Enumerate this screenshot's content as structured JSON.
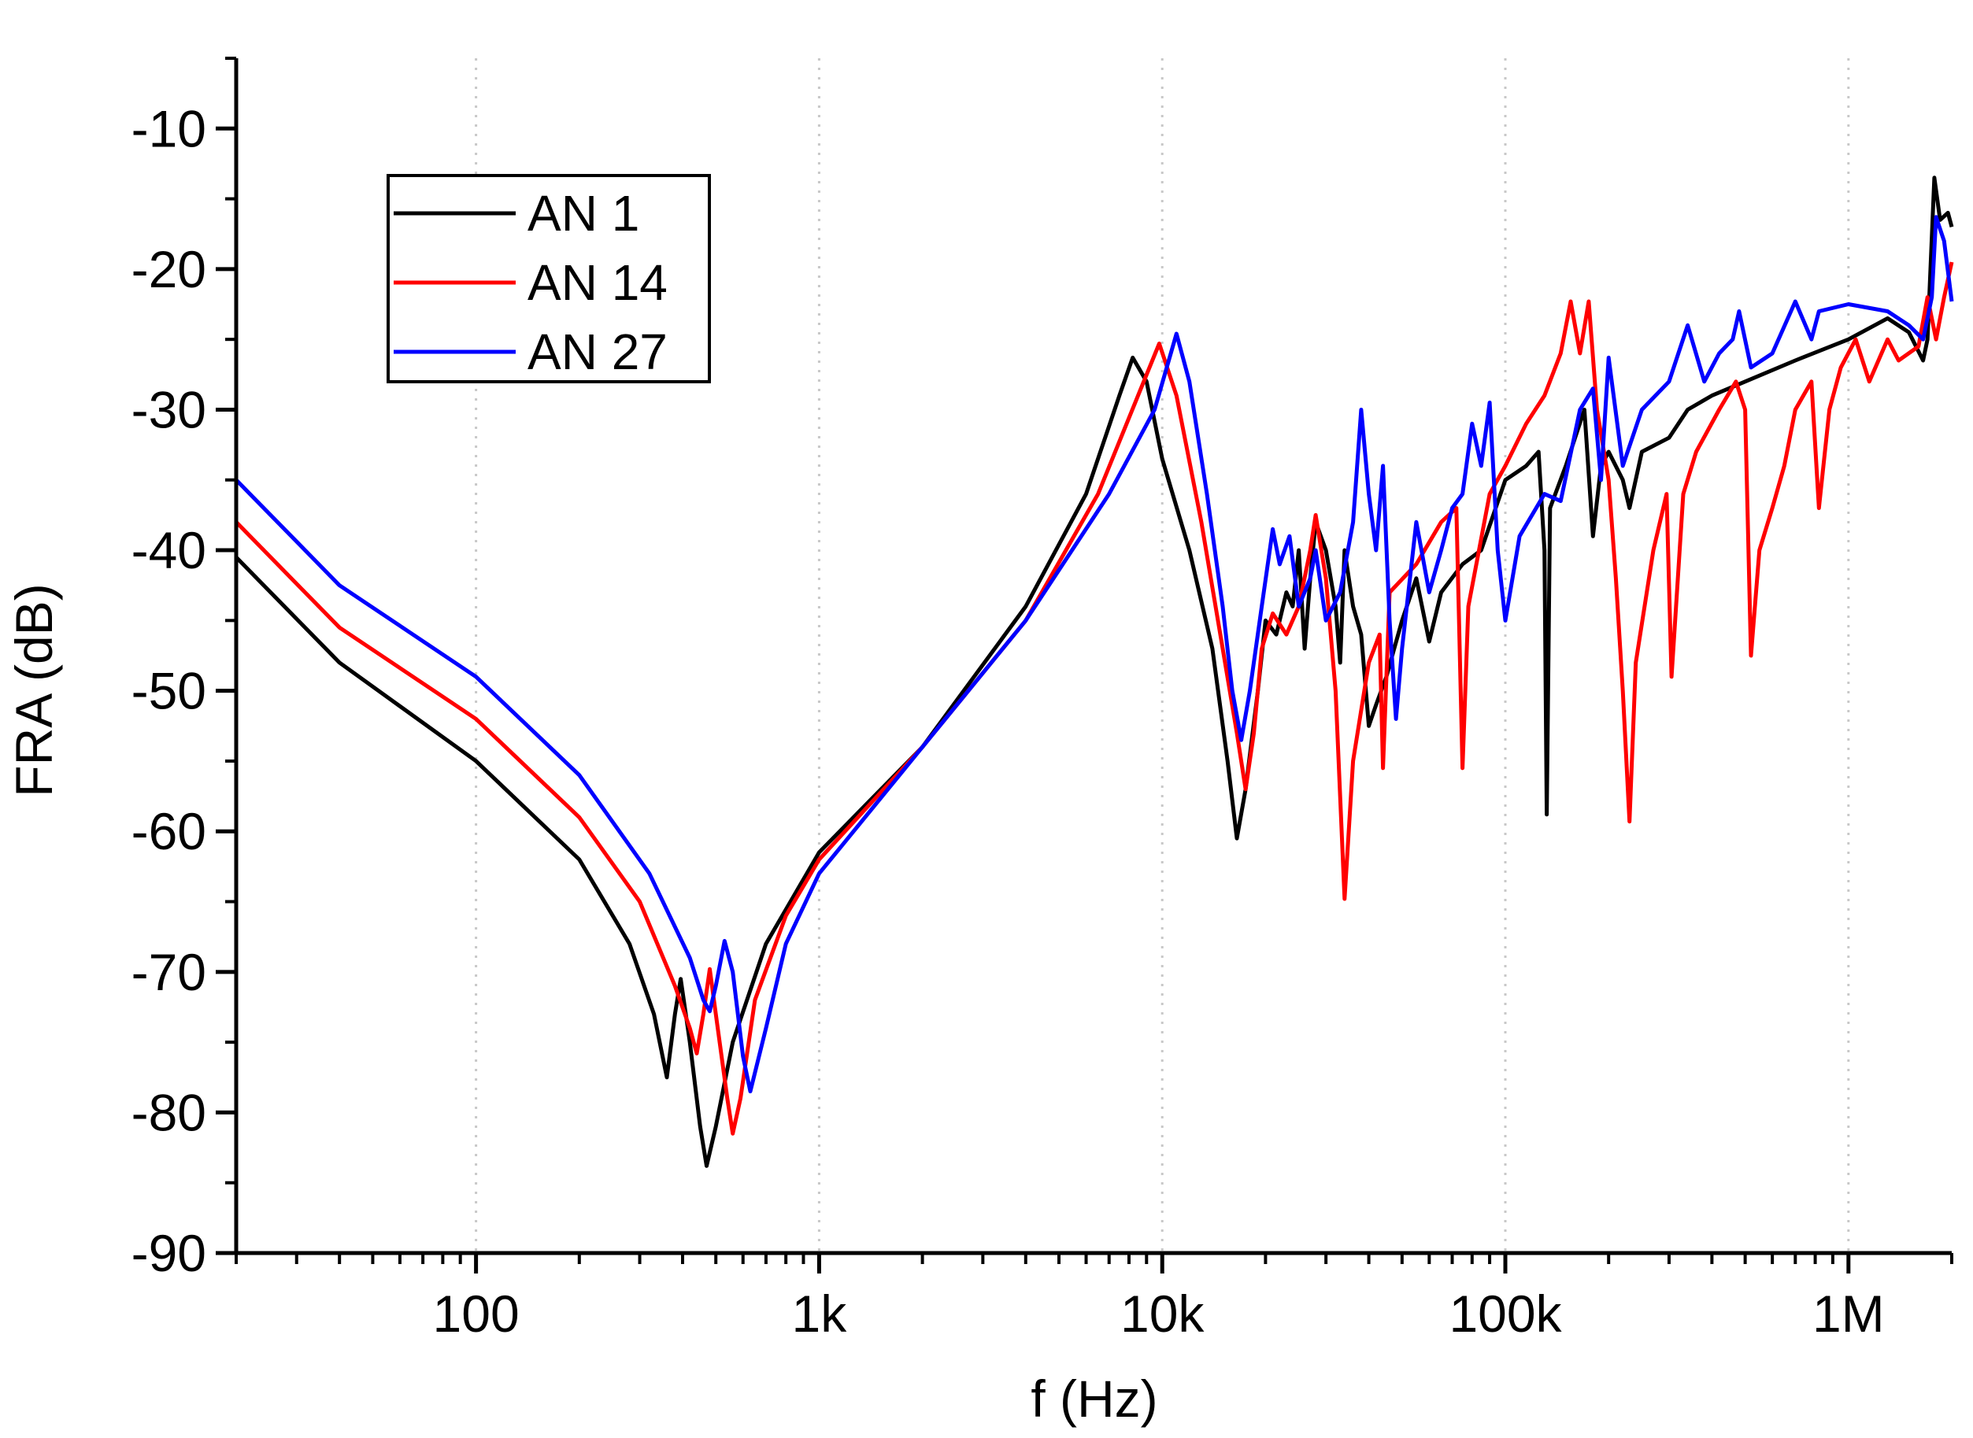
{
  "chart_data": {
    "type": "line",
    "title": "",
    "xlabel": "f (Hz)",
    "ylabel": "FRA (dB)",
    "xscale": "log",
    "xlim": [
      20,
      2000000
    ],
    "ylim": [
      -90,
      -5
    ],
    "grid": "vertical-dotted-at-decades",
    "legend_position": "top-left",
    "x_ticks": [
      {
        "value": 100,
        "label": "100"
      },
      {
        "value": 1000,
        "label": "1k"
      },
      {
        "value": 10000,
        "label": "10k"
      },
      {
        "value": 100000,
        "label": "100k"
      },
      {
        "value": 1000000,
        "label": "1M"
      }
    ],
    "y_ticks": [
      {
        "value": -10,
        "label": "-10"
      },
      {
        "value": -20,
        "label": "-20"
      },
      {
        "value": -30,
        "label": "-30"
      },
      {
        "value": -40,
        "label": "-40"
      },
      {
        "value": -50,
        "label": "-50"
      },
      {
        "value": -60,
        "label": "-60"
      },
      {
        "value": -70,
        "label": "-70"
      },
      {
        "value": -80,
        "label": "-80"
      },
      {
        "value": -90,
        "label": "-90"
      }
    ],
    "series": [
      {
        "name": "AN 1",
        "color": "#000000",
        "points": [
          [
            20,
            -40.5
          ],
          [
            40,
            -48
          ],
          [
            100,
            -55
          ],
          [
            200,
            -62
          ],
          [
            280,
            -68
          ],
          [
            330,
            -73
          ],
          [
            360,
            -77.5
          ],
          [
            380,
            -73
          ],
          [
            395,
            -70.5
          ],
          [
            420,
            -75
          ],
          [
            450,
            -81
          ],
          [
            470,
            -83.8
          ],
          [
            500,
            -81
          ],
          [
            560,
            -75
          ],
          [
            700,
            -68
          ],
          [
            1000,
            -61.5
          ],
          [
            2000,
            -54
          ],
          [
            4000,
            -44
          ],
          [
            6000,
            -36
          ],
          [
            7500,
            -29
          ],
          [
            8200,
            -26.3
          ],
          [
            9000,
            -28
          ],
          [
            10000,
            -33.5
          ],
          [
            12000,
            -40
          ],
          [
            14000,
            -47
          ],
          [
            15500,
            -55
          ],
          [
            16500,
            -60.5
          ],
          [
            17500,
            -57
          ],
          [
            19000,
            -50
          ],
          [
            20000,
            -45
          ],
          [
            21500,
            -46
          ],
          [
            23000,
            -43
          ],
          [
            24000,
            -44
          ],
          [
            25000,
            -40
          ],
          [
            26000,
            -47
          ],
          [
            27000,
            -42
          ],
          [
            28000,
            -38
          ],
          [
            30000,
            -40
          ],
          [
            32000,
            -44
          ],
          [
            33000,
            -48
          ],
          [
            34000,
            -40
          ],
          [
            36000,
            -44
          ],
          [
            38000,
            -46
          ],
          [
            40000,
            -52.5
          ],
          [
            42000,
            -51
          ],
          [
            45000,
            -49
          ],
          [
            50000,
            -45
          ],
          [
            55000,
            -42
          ],
          [
            60000,
            -46.5
          ],
          [
            65000,
            -43
          ],
          [
            75000,
            -41
          ],
          [
            85000,
            -40
          ],
          [
            100000,
            -35
          ],
          [
            115000,
            -34
          ],
          [
            125000,
            -33
          ],
          [
            130000,
            -40
          ],
          [
            132000,
            -58.8
          ],
          [
            135000,
            -37
          ],
          [
            150000,
            -34
          ],
          [
            170000,
            -30
          ],
          [
            180000,
            -39
          ],
          [
            190000,
            -34
          ],
          [
            200000,
            -33
          ],
          [
            220000,
            -35
          ],
          [
            230000,
            -37
          ],
          [
            250000,
            -33
          ],
          [
            300000,
            -32
          ],
          [
            340000,
            -30
          ],
          [
            400000,
            -29
          ],
          [
            500000,
            -28
          ],
          [
            700000,
            -26.5
          ],
          [
            1000000,
            -25
          ],
          [
            1300000,
            -23.5
          ],
          [
            1500000,
            -24.5
          ],
          [
            1650000,
            -26.5
          ],
          [
            1700000,
            -25
          ],
          [
            1780000,
            -13.5
          ],
          [
            1850000,
            -16.5
          ],
          [
            1950000,
            -16
          ],
          [
            2000000,
            -17
          ]
        ]
      },
      {
        "name": "AN 14",
        "color": "#ff0000",
        "points": [
          [
            20,
            -38
          ],
          [
            40,
            -45.5
          ],
          [
            100,
            -52
          ],
          [
            200,
            -59
          ],
          [
            300,
            -65
          ],
          [
            380,
            -71
          ],
          [
            420,
            -74
          ],
          [
            440,
            -75.8
          ],
          [
            460,
            -73
          ],
          [
            480,
            -69.8
          ],
          [
            500,
            -73
          ],
          [
            540,
            -79
          ],
          [
            560,
            -81.5
          ],
          [
            590,
            -79
          ],
          [
            650,
            -72
          ],
          [
            800,
            -66
          ],
          [
            1000,
            -62
          ],
          [
            2000,
            -54
          ],
          [
            4000,
            -45
          ],
          [
            6500,
            -36
          ],
          [
            8500,
            -29
          ],
          [
            9800,
            -25.3
          ],
          [
            11000,
            -29
          ],
          [
            13000,
            -38
          ],
          [
            15000,
            -47
          ],
          [
            16500,
            -53
          ],
          [
            17500,
            -57
          ],
          [
            18500,
            -53
          ],
          [
            19500,
            -47
          ],
          [
            21000,
            -44.5
          ],
          [
            23000,
            -46
          ],
          [
            25000,
            -44
          ],
          [
            27000,
            -40
          ],
          [
            28000,
            -37.5
          ],
          [
            30000,
            -42
          ],
          [
            32000,
            -50
          ],
          [
            34000,
            -64.8
          ],
          [
            36000,
            -55
          ],
          [
            40000,
            -48
          ],
          [
            43000,
            -46
          ],
          [
            44000,
            -55.5
          ],
          [
            46000,
            -43
          ],
          [
            55000,
            -41
          ],
          [
            65000,
            -38
          ],
          [
            72000,
            -37
          ],
          [
            75000,
            -55.5
          ],
          [
            78000,
            -44
          ],
          [
            90000,
            -36
          ],
          [
            100000,
            -34
          ],
          [
            115000,
            -31
          ],
          [
            130000,
            -29
          ],
          [
            145000,
            -26
          ],
          [
            155000,
            -22.3
          ],
          [
            165000,
            -26
          ],
          [
            175000,
            -22.3
          ],
          [
            185000,
            -30
          ],
          [
            200000,
            -35
          ],
          [
            210000,
            -42
          ],
          [
            220000,
            -50
          ],
          [
            230000,
            -59.3
          ],
          [
            240000,
            -48
          ],
          [
            270000,
            -40
          ],
          [
            295000,
            -36
          ],
          [
            305000,
            -49
          ],
          [
            330000,
            -36
          ],
          [
            360000,
            -33
          ],
          [
            420000,
            -30
          ],
          [
            470000,
            -28
          ],
          [
            500000,
            -30
          ],
          [
            520000,
            -47.5
          ],
          [
            550000,
            -40
          ],
          [
            600000,
            -37
          ],
          [
            650000,
            -34
          ],
          [
            700000,
            -30
          ],
          [
            780000,
            -28
          ],
          [
            820000,
            -37
          ],
          [
            880000,
            -30
          ],
          [
            950000,
            -27
          ],
          [
            1050000,
            -25
          ],
          [
            1150000,
            -28
          ],
          [
            1300000,
            -25
          ],
          [
            1400000,
            -26.5
          ],
          [
            1600000,
            -25.5
          ],
          [
            1700000,
            -22
          ],
          [
            1800000,
            -25
          ],
          [
            1900000,
            -22
          ],
          [
            2000000,
            -19.5
          ]
        ]
      },
      {
        "name": "AN 27",
        "color": "#0000ff",
        "points": [
          [
            20,
            -35
          ],
          [
            40,
            -42.5
          ],
          [
            100,
            -49
          ],
          [
            200,
            -56
          ],
          [
            320,
            -63
          ],
          [
            420,
            -69
          ],
          [
            460,
            -72
          ],
          [
            480,
            -72.8
          ],
          [
            500,
            -71
          ],
          [
            530,
            -67.8
          ],
          [
            560,
            -70
          ],
          [
            600,
            -76
          ],
          [
            630,
            -78.5
          ],
          [
            700,
            -74
          ],
          [
            800,
            -68
          ],
          [
            1000,
            -63
          ],
          [
            2000,
            -54
          ],
          [
            4000,
            -45
          ],
          [
            7000,
            -36
          ],
          [
            9500,
            -30
          ],
          [
            11000,
            -24.6
          ],
          [
            12000,
            -28
          ],
          [
            13500,
            -36
          ],
          [
            15000,
            -44
          ],
          [
            16000,
            -50
          ],
          [
            17000,
            -53.5
          ],
          [
            18000,
            -50
          ],
          [
            19500,
            -44
          ],
          [
            21000,
            -38.5
          ],
          [
            22000,
            -41
          ],
          [
            23500,
            -39
          ],
          [
            25000,
            -44
          ],
          [
            27000,
            -42
          ],
          [
            28000,
            -40
          ],
          [
            30000,
            -45
          ],
          [
            33000,
            -43
          ],
          [
            36000,
            -38
          ],
          [
            38000,
            -30
          ],
          [
            40000,
            -36
          ],
          [
            42000,
            -40
          ],
          [
            44000,
            -34
          ],
          [
            46000,
            -45
          ],
          [
            48000,
            -52
          ],
          [
            50000,
            -47
          ],
          [
            55000,
            -38
          ],
          [
            60000,
            -43
          ],
          [
            65000,
            -40
          ],
          [
            70000,
            -37
          ],
          [
            75000,
            -36
          ],
          [
            80000,
            -31
          ],
          [
            85000,
            -34
          ],
          [
            90000,
            -29.5
          ],
          [
            95000,
            -40
          ],
          [
            100000,
            -45
          ],
          [
            110000,
            -39
          ],
          [
            130000,
            -36
          ],
          [
            145000,
            -36.5
          ],
          [
            165000,
            -30
          ],
          [
            180000,
            -28.5
          ],
          [
            190000,
            -35
          ],
          [
            200000,
            -26.3
          ],
          [
            220000,
            -34
          ],
          [
            250000,
            -30
          ],
          [
            300000,
            -28
          ],
          [
            340000,
            -24
          ],
          [
            380000,
            -28
          ],
          [
            420000,
            -26
          ],
          [
            460000,
            -25
          ],
          [
            480000,
            -23
          ],
          [
            520000,
            -27
          ],
          [
            600000,
            -26
          ],
          [
            700000,
            -22.3
          ],
          [
            780000,
            -25
          ],
          [
            820000,
            -23
          ],
          [
            1000000,
            -22.5
          ],
          [
            1300000,
            -23
          ],
          [
            1500000,
            -24
          ],
          [
            1650000,
            -25
          ],
          [
            1750000,
            -22
          ],
          [
            1800000,
            -16.3
          ],
          [
            1900000,
            -18
          ],
          [
            2000000,
            -22.3
          ]
        ]
      }
    ]
  }
}
